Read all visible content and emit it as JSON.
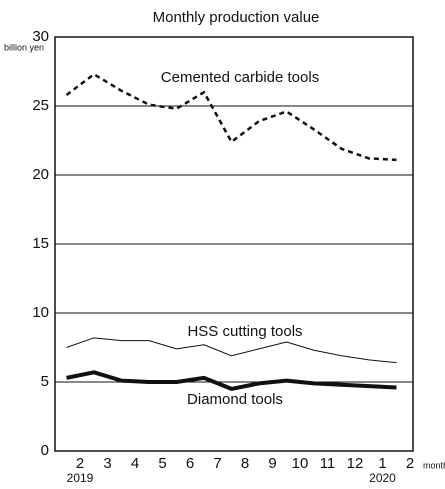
{
  "chart_data": {
    "type": "line",
    "title": "Monthly production value",
    "y_unit": "billion yen",
    "x_unit": "month",
    "categories": [
      "2",
      "3",
      "4",
      "5",
      "6",
      "7",
      "8",
      "9",
      "10",
      "11",
      "12",
      "1",
      "2"
    ],
    "years": [
      "2019",
      null,
      null,
      null,
      null,
      null,
      null,
      null,
      null,
      null,
      null,
      "2020",
      null
    ],
    "series": [
      {
        "name": "Cemented carbide tools",
        "color": "#111111",
        "dash": true,
        "width": 2.5,
        "values": [
          25.8,
          27.3,
          26.1,
          25.1,
          24.8,
          26.0,
          22.4,
          23.9,
          24.6,
          23.3,
          21.9,
          21.2,
          21.1
        ]
      },
      {
        "name": "HSS cutting tools",
        "color": "#111111",
        "dash": false,
        "width": 1,
        "values": [
          7.5,
          8.2,
          8.0,
          8.0,
          7.4,
          7.7,
          6.9,
          7.4,
          7.9,
          7.3,
          6.9,
          6.6,
          6.4
        ]
      },
      {
        "name": "Diamond tools",
        "color": "#111111",
        "dash": false,
        "width": 4,
        "values": [
          5.3,
          5.7,
          5.1,
          5.0,
          5.0,
          5.3,
          4.5,
          4.9,
          5.1,
          4.9,
          4.8,
          4.7,
          4.6
        ]
      }
    ],
    "ylim": [
      0,
      30
    ],
    "yticks": [
      0,
      5,
      10,
      15,
      20,
      25,
      30
    ],
    "grid": true
  }
}
